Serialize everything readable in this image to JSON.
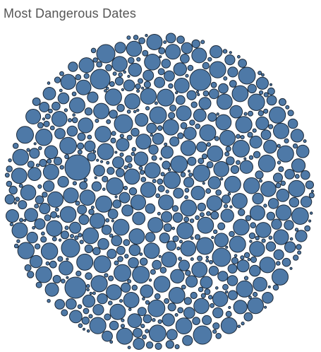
{
  "chart_data": {
    "type": "packed-bubble",
    "title": "Most Dangerous Dates",
    "colors": {
      "bubble_fill": "#4e79a7",
      "bubble_stroke": "#1c2a3a",
      "background": "#ffffff",
      "title": "#555555"
    },
    "legend": "none",
    "grid": false
  }
}
